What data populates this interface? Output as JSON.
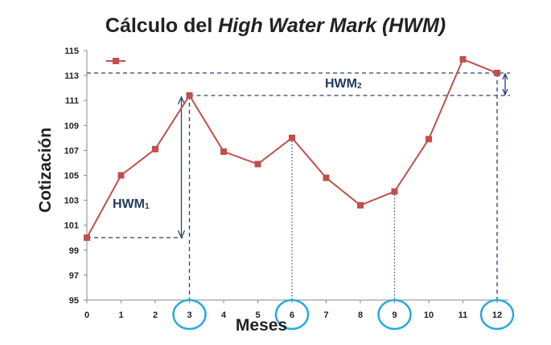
{
  "title_prefix": "Cálculo del ",
  "title_italic": "High Water Mark (HWM)",
  "chart_data": {
    "type": "line",
    "xlabel": "Meses",
    "ylabel": "Cotización",
    "x": [
      0,
      1,
      2,
      3,
      4,
      5,
      6,
      7,
      8,
      9,
      10,
      11,
      12
    ],
    "series": [
      {
        "values": [
          100,
          105,
          107.1,
          111.4,
          106.9,
          105.9,
          108,
          104.8,
          102.6,
          103.7,
          107.9,
          114.3,
          113.2
        ]
      }
    ],
    "ylim": [
      95,
      115
    ],
    "yticks": [
      95,
      97,
      99,
      101,
      103,
      105,
      107,
      109,
      111,
      113,
      115
    ],
    "xticks": [
      0,
      1,
      2,
      3,
      4,
      5,
      6,
      7,
      8,
      9,
      10,
      11,
      12
    ],
    "highlighted_months": [
      3,
      6,
      9,
      12
    ],
    "series_color": "#c0504d",
    "reference_color": "#2e3f73",
    "circle_color": "#29a8e0",
    "annotations": {
      "hwm1_text": "HWM",
      "hwm1_sub": "1",
      "hwm2_text": "HWM",
      "hwm2_sub": "2"
    },
    "legend": "top-left"
  }
}
